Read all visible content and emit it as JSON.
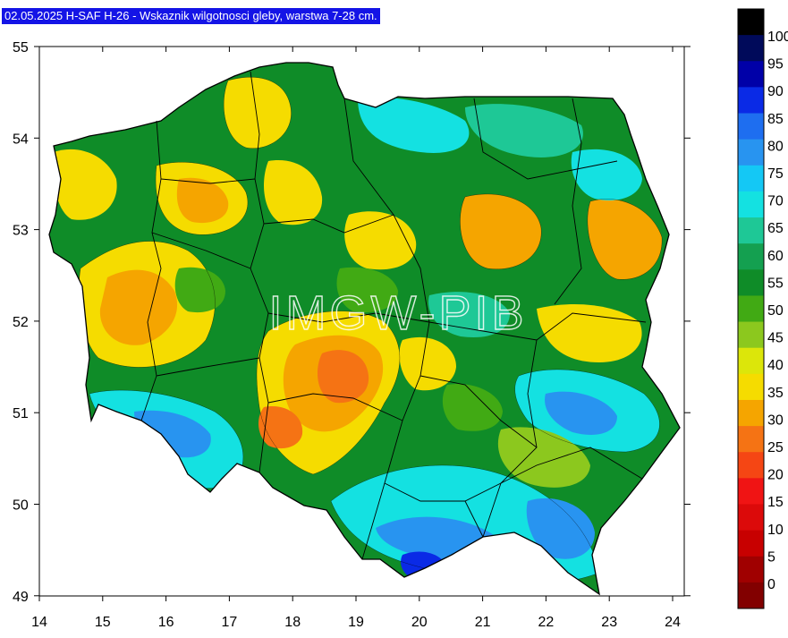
{
  "title": "02.05.2025 H-SAF H-26 - Wskaznik wilgotnosci gleby, warstwa 7-28 cm.",
  "watermark": "IMGW-PIB",
  "axes": {
    "x_ticks": [
      "14",
      "15",
      "16",
      "17",
      "18",
      "19",
      "20",
      "21",
      "22",
      "23",
      "24"
    ],
    "y_ticks": [
      "55",
      "54",
      "53",
      "52",
      "51",
      "50",
      "49"
    ]
  },
  "legend": {
    "labels": [
      "100",
      "95",
      "90",
      "85",
      "80",
      "75",
      "70",
      "65",
      "60",
      "55",
      "50",
      "45",
      "40",
      "35",
      "30",
      "25",
      "20",
      "15",
      "10",
      "5",
      "0"
    ],
    "colors": [
      "#000000",
      "#000a5a",
      "#0000a8",
      "#0a2ae6",
      "#1e6ef0",
      "#2894f0",
      "#14c8f5",
      "#14e1e1",
      "#1ec896",
      "#14a050",
      "#0f8c28",
      "#41aa14",
      "#8cc81e",
      "#dce60a",
      "#f5dc00",
      "#f5a500",
      "#f57314",
      "#f54614",
      "#f01414",
      "#dc0a0a",
      "#c80000",
      "#a00000",
      "#820000"
    ]
  },
  "map_colors": {
    "very_dry": "#f57314",
    "dry": "#f5a500",
    "semi_dry": "#f5dc00",
    "moderate": "#8cc81e",
    "medium": "#41aa14",
    "medium_wet": "#0f8c28",
    "wet": "#1ec896",
    "wetter": "#14e1e1",
    "very_wet": "#2894f0",
    "saturated": "#0a2ae6"
  }
}
